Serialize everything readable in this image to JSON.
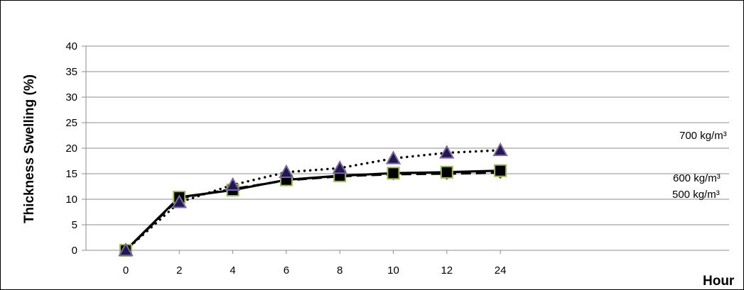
{
  "chart_data": {
    "type": "line",
    "ylabel": "Thickness Swelling (%)",
    "xlabel": "Hour",
    "categories": [
      "0",
      "2",
      "4",
      "6",
      "8",
      "10",
      "12",
      "24"
    ],
    "ylim": [
      0,
      40
    ],
    "yticks": [
      0,
      5,
      10,
      15,
      20,
      25,
      30,
      35,
      40
    ],
    "grid": true,
    "series": [
      {
        "name": "500 kg/m³",
        "values": [
          0,
          10.2,
          12.0,
          13.7,
          14.5,
          14.9,
          15.0,
          15.2
        ],
        "line_style": "dashed",
        "color": "#000000",
        "marker": "diamond",
        "marker_color": "#C0504D"
      },
      {
        "name": "600 kg/m³",
        "values": [
          0,
          10.4,
          11.8,
          13.8,
          14.6,
          15.1,
          15.3,
          15.6
        ],
        "line_style": "solid",
        "color": "#000000",
        "marker": "square",
        "marker_color": "#000000",
        "marker_edge": "#9BBB59"
      },
      {
        "name": "700 kg/m³",
        "values": [
          0,
          9.4,
          12.8,
          15.3,
          16.1,
          18.0,
          19.1,
          19.6
        ],
        "line_style": "dotted",
        "color": "#000000",
        "marker": "triangle",
        "marker_color": "#1F1A4D",
        "marker_edge": "#8064A2"
      }
    ]
  }
}
